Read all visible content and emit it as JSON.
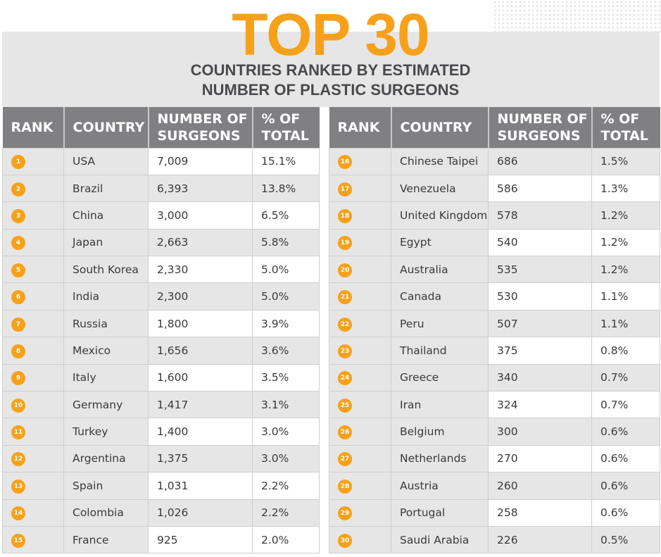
{
  "header": {
    "title": "TOP 30",
    "subtitle_line1": "COUNTRIES RANKED BY ESTIMATED",
    "subtitle_line2": "NUMBER OF PLASTIC SURGEONS"
  },
  "columns": {
    "rank": "RANK",
    "country": "COUNTRY",
    "surgeons_l1": "NUMBER OF",
    "surgeons_l2": "SURGEONS",
    "pct_l1": "% OF",
    "pct_l2": "TOTAL"
  },
  "accent": "#f7a11a",
  "rows": [
    [
      "1",
      "USA",
      "7,009",
      "15.1%"
    ],
    [
      "2",
      "Brazil",
      "6,393",
      "13.8%"
    ],
    [
      "3",
      "China",
      "3,000",
      "6.5%"
    ],
    [
      "4",
      "Japan",
      "2,663",
      "5.8%"
    ],
    [
      "5",
      "South Korea",
      "2,330",
      "5.0%"
    ],
    [
      "6",
      "India",
      "2,300",
      "5.0%"
    ],
    [
      "7",
      "Russia",
      "1,800",
      "3.9%"
    ],
    [
      "8",
      "Mexico",
      "1,656",
      "3.6%"
    ],
    [
      "9",
      "Italy",
      "1,600",
      "3.5%"
    ],
    [
      "10",
      "Germany",
      "1,417",
      "3.1%"
    ],
    [
      "11",
      "Turkey",
      "1,400",
      "3.0%"
    ],
    [
      "12",
      "Argentina",
      "1,375",
      "3.0%"
    ],
    [
      "13",
      "Spain",
      "1,031",
      "2.2%"
    ],
    [
      "14",
      "Colombia",
      "1,026",
      "2.2%"
    ],
    [
      "15",
      "France",
      "925",
      "2.0%"
    ],
    [
      "16",
      "Chinese Taipei",
      "686",
      "1.5%"
    ],
    [
      "17",
      "Venezuela",
      "586",
      "1.3%"
    ],
    [
      "18",
      "United Kingdom",
      "578",
      "1.2%"
    ],
    [
      "19",
      "Egypt",
      "540",
      "1.2%"
    ],
    [
      "20",
      "Australia",
      "535",
      "1.2%"
    ],
    [
      "21",
      "Canada",
      "530",
      "1.1%"
    ],
    [
      "22",
      "Peru",
      "507",
      "1.1%"
    ],
    [
      "23",
      "Thailand",
      "375",
      "0.8%"
    ],
    [
      "24",
      "Greece",
      "340",
      "0.7%"
    ],
    [
      "25",
      "Iran",
      "324",
      "0.7%"
    ],
    [
      "26",
      "Belgium",
      "300",
      "0.6%"
    ],
    [
      "27",
      "Netherlands",
      "270",
      "0.6%"
    ],
    [
      "28",
      "Austria",
      "260",
      "0.6%"
    ],
    [
      "29",
      "Portugal",
      "258",
      "0.6%"
    ],
    [
      "30",
      "Saudi Arabia",
      "226",
      "0.5%"
    ]
  ]
}
